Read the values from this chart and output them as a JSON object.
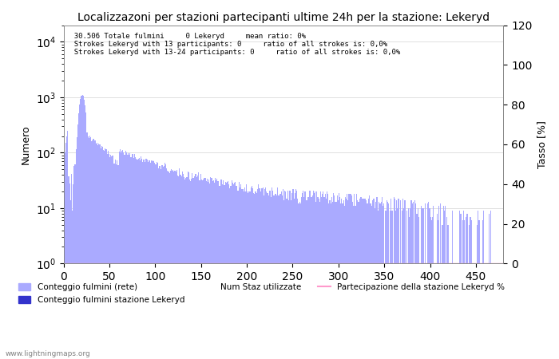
{
  "title": "Localizzazoni per stazioni partecipanti ultime 24h per la stazione: Lekeryd",
  "subtitle_line1": "  30.506 Totale fulmini     0 Lekeryd     mean ratio: 0%",
  "subtitle_line2": "  Strokes Lekeryd with 13 participants: 0     ratio of all strokes is: 0,0%",
  "subtitle_line3": "  Strokes Lekeryd with 13-24 participants: 0     ratio of all strokes is: 0,0%",
  "xlabel": "",
  "ylabel_left": "Numero",
  "ylabel_right": "Tasso [%]",
  "xlim": [
    0,
    480
  ],
  "ylim_left": [
    1,
    20000
  ],
  "ylim_right": [
    0,
    120
  ],
  "bar_color": "#aaaaff",
  "bar_color_lekeryd": "#3333cc",
  "line_color": "#ff99cc",
  "watermark": "www.lightningmaps.org",
  "legend_labels": [
    "Conteggio fulmini (rete)",
    "Conteggio fulmini stazione Lekeryd",
    "Num Staz utilizzate",
    "Partecipazione della stazione Lekeryd %"
  ],
  "xticks": [
    0,
    50,
    100,
    150,
    200,
    250,
    300,
    350,
    400,
    450
  ],
  "yticks_right": [
    0,
    20,
    40,
    60,
    80,
    100,
    120
  ],
  "num_bins": 480
}
